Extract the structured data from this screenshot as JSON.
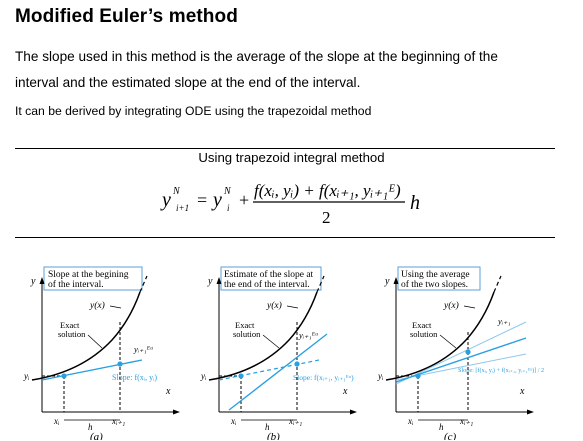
{
  "heading": "Modified Euler’s method",
  "paragraph": {
    "line1": "The slope used in this method is the average of the slope at the beginning of the",
    "line2": "interval and the estimated slope at the end of the interval."
  },
  "note": "It can be derived by integrating ODE using the trapezoidal method",
  "box_title": "Using trapezoid integral method",
  "formula": {
    "lhs": "y",
    "lhs_sup": "N",
    "lhs_sub": "i+1",
    "eq": "=",
    "rhs_y": "y",
    "rhs_sup": "N",
    "rhs_sub": "i",
    "plus": "+",
    "numerator": "f(xᵢ, yᵢ) + f(xᵢ₊₁, yᵢ₊₁ᴱ)",
    "denominator": "2",
    "h": "h"
  },
  "panels": [
    {
      "caption": "(a)",
      "label_line1": "Slope at the begining",
      "label_line2": "of the interval.",
      "curve_label": "y(x)",
      "exact_line1": "Exact",
      "exact_line2": "solution",
      "y_axis": "y",
      "x_axis": "x",
      "yi": "yᵢ",
      "xi": "xᵢ",
      "xi1": "xᵢ₊₁",
      "h": "h",
      "y_next": "yᵢ₊₁ᴱᵘ",
      "slope": "Slope: f(xᵢ, yᵢ)"
    },
    {
      "caption": "(b)",
      "label_line1": "Estimate of the slope at",
      "label_line2": "the end of the interval.",
      "curve_label": "y(x)",
      "exact_line1": "Exact",
      "exact_line2": "solution",
      "y_axis": "y",
      "x_axis": "x",
      "yi": "yᵢ",
      "xi": "xᵢ",
      "xi1": "xᵢ₊₁",
      "h": "h",
      "y_next": "yᵢ₊₁ᴱᵘ",
      "slope": "Slope: f(xᵢ₊₁, yᵢ₊₁ᴱᵘ)"
    },
    {
      "caption": "(c)",
      "label_line1": "Using the average",
      "label_line2": "of the two slopes.",
      "curve_label": "y(x)",
      "exact_line1": "Exact",
      "exact_line2": "solution",
      "y_axis": "y",
      "x_axis": "x",
      "yi": "yᵢ",
      "xi": "xᵢ",
      "xi1": "xᵢ₊₁",
      "h": "h",
      "y_next": "yᵢ₊₁",
      "slope": "Slope: [f(xᵢ, yᵢ) + f(xᵢ₊₁, yᵢ₊₁ᴱᵘ)] / 2"
    }
  ]
}
